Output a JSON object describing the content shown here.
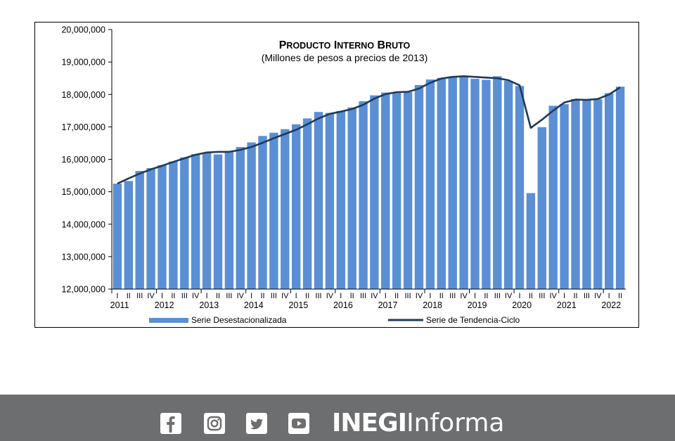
{
  "chart_data": {
    "type": "bar",
    "title": "Producto Interno Bruto",
    "subtitle": "(Millones de pesos a precios de 2013)",
    "ylim": [
      12000000,
      20000000
    ],
    "yticks": [
      "12,000,000",
      "13,000,000",
      "14,000,000",
      "15,000,000",
      "16,000,000",
      "17,000,000",
      "18,000,000",
      "19,000,000",
      "20,000,000"
    ],
    "ytick_values": [
      12000000,
      13000000,
      14000000,
      15000000,
      16000000,
      17000000,
      18000000,
      19000000,
      20000000
    ],
    "quarters": [
      "I",
      "II",
      "III",
      "IV",
      "I",
      "II",
      "III",
      "IV",
      "I",
      "II",
      "III",
      "IV",
      "I",
      "II",
      "III",
      "IV",
      "I",
      "II",
      "III",
      "IV",
      "I",
      "II",
      "III",
      "IV",
      "I",
      "II",
      "III",
      "IV",
      "I",
      "II",
      "III",
      "IV",
      "I",
      "II",
      "III",
      "IV",
      "I",
      "II",
      "III",
      "IV",
      "I",
      "II",
      "III",
      "IV",
      "I",
      "II"
    ],
    "years": [
      "2011",
      "2012",
      "2013",
      "2014",
      "2015",
      "2016",
      "2017",
      "2018",
      "2019",
      "2020",
      "2021",
      "2022"
    ],
    "grid": false,
    "legend_position": "bottom",
    "series": [
      {
        "name": "Serie Desestacionalizada",
        "type": "bar",
        "color": "#5b8fd5",
        "values": [
          15250000,
          15330000,
          15640000,
          15730000,
          15820000,
          15930000,
          16060000,
          16160000,
          16200000,
          16150000,
          16260000,
          16380000,
          16520000,
          16720000,
          16820000,
          16930000,
          17080000,
          17260000,
          17460000,
          17430000,
          17490000,
          17600000,
          17790000,
          17970000,
          18060000,
          18070000,
          18070000,
          18290000,
          18460000,
          18510000,
          18550000,
          18530000,
          18480000,
          18450000,
          18560000,
          18420000,
          18260000,
          14960000,
          16990000,
          17650000,
          17700000,
          17860000,
          17810000,
          17850000,
          18040000,
          18240000
        ]
      },
      {
        "name": "Serie de Tendencia-Ciclo",
        "type": "line",
        "color": "#1f3a5a",
        "values": [
          15250000,
          15410000,
          15560000,
          15690000,
          15800000,
          15920000,
          16030000,
          16140000,
          16210000,
          16230000,
          16230000,
          16290000,
          16380000,
          16510000,
          16650000,
          16780000,
          16910000,
          17080000,
          17260000,
          17400000,
          17470000,
          17550000,
          17680000,
          17870000,
          18010000,
          18070000,
          18080000,
          18180000,
          18360000,
          18490000,
          18540000,
          18560000,
          18540000,
          18520000,
          18500000,
          18440000,
          18280000,
          16970000,
          17220000,
          17500000,
          17750000,
          17840000,
          17830000,
          17860000,
          18000000,
          18220000
        ]
      }
    ]
  },
  "footer": {
    "background": "#6d6e70",
    "icons": [
      "facebook-icon",
      "instagram-icon",
      "twitter-icon",
      "youtube-icon"
    ],
    "brand_bold": "INEGI",
    "brand_regular": "Informa"
  }
}
